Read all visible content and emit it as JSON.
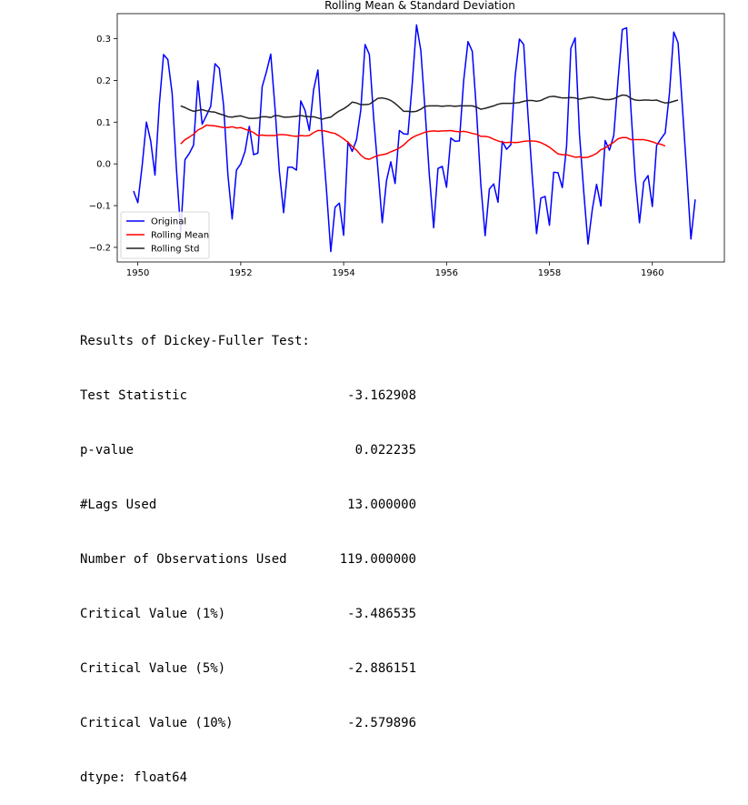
{
  "chart_data": {
    "type": "line",
    "title": "Rolling Mean & Standard Deviation",
    "xlabel": "",
    "ylabel": "",
    "xlim": [
      1949.6,
      1961.4
    ],
    "ylim": [
      -0.235,
      0.36
    ],
    "xticks": [
      1950,
      1952,
      1954,
      1956,
      1958,
      1960
    ],
    "xtick_labels": [
      "1950",
      "1952",
      "1954",
      "1956",
      "1958",
      "1960"
    ],
    "yticks": [
      -0.2,
      -0.1,
      0.0,
      0.1,
      0.2,
      0.3
    ],
    "ytick_labels": [
      "−0.2",
      "−0.1",
      "0.0",
      "0.1",
      "0.2",
      "0.3"
    ],
    "grid": false,
    "legend_position": "lower-left",
    "series": [
      {
        "name": "Original",
        "color": "#0000ff",
        "x_start": 1949.917,
        "x_step": 0.08333,
        "values": [
          -0.065,
          -0.093,
          -0.005,
          0.1,
          0.055,
          -0.027,
          0.141,
          0.262,
          0.25,
          0.169,
          -0.012,
          -0.162,
          0.01,
          0.025,
          0.045,
          0.199,
          0.095,
          0.116,
          0.138,
          0.24,
          0.229,
          0.14,
          -0.025,
          -0.132,
          -0.015,
          0.0,
          0.03,
          0.09,
          0.022,
          0.026,
          0.185,
          0.221,
          0.263,
          0.133,
          -0.017,
          -0.117,
          -0.008,
          -0.008,
          -0.015,
          0.151,
          0.128,
          0.08,
          0.178,
          0.225,
          0.07,
          -0.063,
          -0.21,
          -0.104,
          -0.094,
          -0.171,
          0.053,
          0.03,
          0.058,
          0.129,
          0.286,
          0.262,
          0.11,
          -0.013,
          -0.141,
          -0.04,
          0.005,
          -0.047,
          0.08,
          0.072,
          0.071,
          0.192,
          0.333,
          0.272,
          0.128,
          -0.028,
          -0.153,
          -0.011,
          -0.006,
          -0.056,
          0.062,
          0.054,
          0.055,
          0.2,
          0.293,
          0.27,
          0.125,
          -0.05,
          -0.172,
          -0.06,
          -0.048,
          -0.092,
          0.054,
          0.035,
          0.046,
          0.21,
          0.299,
          0.286,
          0.117,
          -0.031,
          -0.167,
          -0.082,
          -0.078,
          -0.147,
          -0.02,
          -0.021,
          -0.057,
          0.043,
          0.277,
          0.302,
          0.072,
          -0.066,
          -0.192,
          -0.109,
          -0.049,
          -0.101,
          0.056,
          0.033,
          0.068,
          0.2,
          0.322,
          0.326,
          0.132,
          -0.03,
          -0.141,
          -0.043,
          -0.028,
          -0.102,
          0.044,
          0.06,
          0.074,
          0.17,
          0.316,
          0.29,
          0.138,
          -0.016,
          -0.18,
          -0.085
        ]
      },
      {
        "name": "Rolling Mean",
        "color": "#ff0000",
        "x_start": 1950.833,
        "x_step": 0.08333,
        "values": [
          0.048,
          0.058,
          0.064,
          0.071,
          0.081,
          0.086,
          0.093,
          0.092,
          0.091,
          0.089,
          0.087,
          0.087,
          0.089,
          0.086,
          0.087,
          0.083,
          0.08,
          0.075,
          0.068,
          0.069,
          0.068,
          0.068,
          0.068,
          0.07,
          0.07,
          0.069,
          0.067,
          0.066,
          0.068,
          0.067,
          0.068,
          0.075,
          0.08,
          0.08,
          0.078,
          0.075,
          0.073,
          0.067,
          0.06,
          0.052,
          0.042,
          0.033,
          0.021,
          0.013,
          0.011,
          0.016,
          0.02,
          0.022,
          0.024,
          0.029,
          0.033,
          0.038,
          0.045,
          0.055,
          0.063,
          0.068,
          0.072,
          0.076,
          0.078,
          0.079,
          0.078,
          0.079,
          0.079,
          0.08,
          0.078,
          0.077,
          0.078,
          0.076,
          0.073,
          0.071,
          0.066,
          0.066,
          0.064,
          0.059,
          0.055,
          0.052,
          0.051,
          0.052,
          0.051,
          0.052,
          0.054,
          0.055,
          0.055,
          0.054,
          0.051,
          0.046,
          0.04,
          0.032,
          0.024,
          0.022,
          0.022,
          0.019,
          0.016,
          0.017,
          0.015,
          0.016,
          0.02,
          0.025,
          0.034,
          0.038,
          0.045,
          0.052,
          0.06,
          0.063,
          0.063,
          0.058,
          0.058,
          0.058,
          0.058,
          0.056,
          0.053,
          0.049,
          0.047,
          0.043
        ]
      },
      {
        "name": "Rolling Std",
        "color": "#222222",
        "x_start": 1950.833,
        "x_step": 0.08333,
        "values": [
          0.139,
          0.135,
          0.13,
          0.126,
          0.128,
          0.13,
          0.127,
          0.125,
          0.124,
          0.12,
          0.117,
          0.113,
          0.112,
          0.114,
          0.115,
          0.112,
          0.109,
          0.109,
          0.11,
          0.113,
          0.113,
          0.111,
          0.116,
          0.115,
          0.112,
          0.112,
          0.113,
          0.114,
          0.116,
          0.114,
          0.113,
          0.113,
          0.11,
          0.107,
          0.11,
          0.112,
          0.12,
          0.127,
          0.132,
          0.139,
          0.148,
          0.146,
          0.142,
          0.142,
          0.143,
          0.15,
          0.157,
          0.158,
          0.156,
          0.152,
          0.145,
          0.136,
          0.126,
          0.126,
          0.125,
          0.126,
          0.131,
          0.138,
          0.139,
          0.139,
          0.139,
          0.138,
          0.139,
          0.139,
          0.138,
          0.139,
          0.139,
          0.139,
          0.139,
          0.136,
          0.131,
          0.133,
          0.136,
          0.139,
          0.143,
          0.145,
          0.145,
          0.145,
          0.146,
          0.147,
          0.15,
          0.152,
          0.152,
          0.15,
          0.152,
          0.157,
          0.161,
          0.162,
          0.16,
          0.158,
          0.158,
          0.159,
          0.158,
          0.155,
          0.157,
          0.159,
          0.16,
          0.158,
          0.156,
          0.154,
          0.154,
          0.156,
          0.161,
          0.165,
          0.164,
          0.157,
          0.153,
          0.152,
          0.153,
          0.153,
          0.152,
          0.153,
          0.149,
          0.146,
          0.147,
          0.15,
          0.153
        ]
      }
    ]
  },
  "dftest": {
    "heading": "Results of Dickey-Fuller Test:",
    "rows": [
      {
        "label": "Test Statistic",
        "value": "-3.162908"
      },
      {
        "label": "p-value",
        "value": "0.022235"
      },
      {
        "label": "#Lags Used",
        "value": "13.000000"
      },
      {
        "label": "Number of Observations Used",
        "value": "119.000000"
      },
      {
        "label": "Critical Value (1%)",
        "value": "-3.486535"
      },
      {
        "label": "Critical Value (5%)",
        "value": "-2.886151"
      },
      {
        "label": "Critical Value (10%)",
        "value": "-2.579896"
      }
    ],
    "dtype": "dtype: float64"
  }
}
